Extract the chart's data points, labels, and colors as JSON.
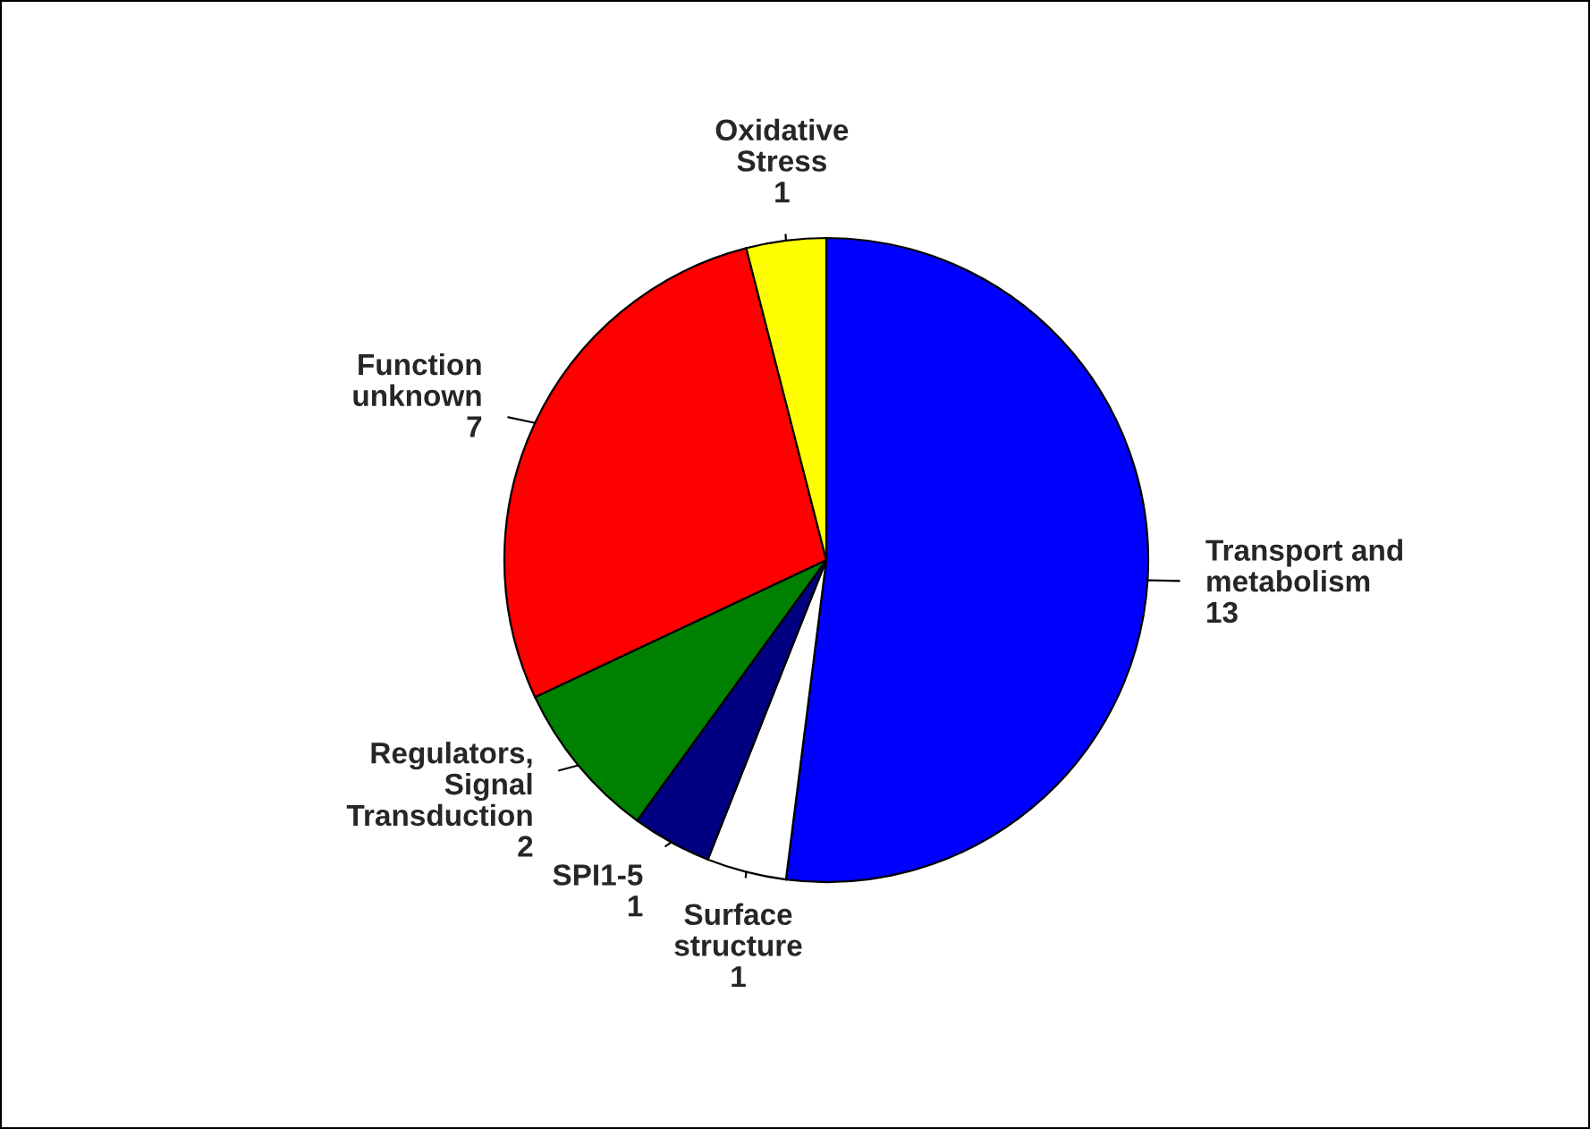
{
  "chart_data": {
    "type": "pie",
    "categories": [
      "Transport and\nmetabolism",
      "Surface\nstructure",
      "SPI1-5",
      "Regulators,\nSignal\nTransduction",
      "Function\nunknown",
      "Oxidative\nStress"
    ],
    "values": [
      13,
      1,
      1,
      2,
      7,
      1
    ],
    "colors": [
      "#0000ff",
      "#ffffff",
      "#000080",
      "#008000",
      "#ff0000",
      "#ffff00"
    ],
    "data_labels": true
  }
}
